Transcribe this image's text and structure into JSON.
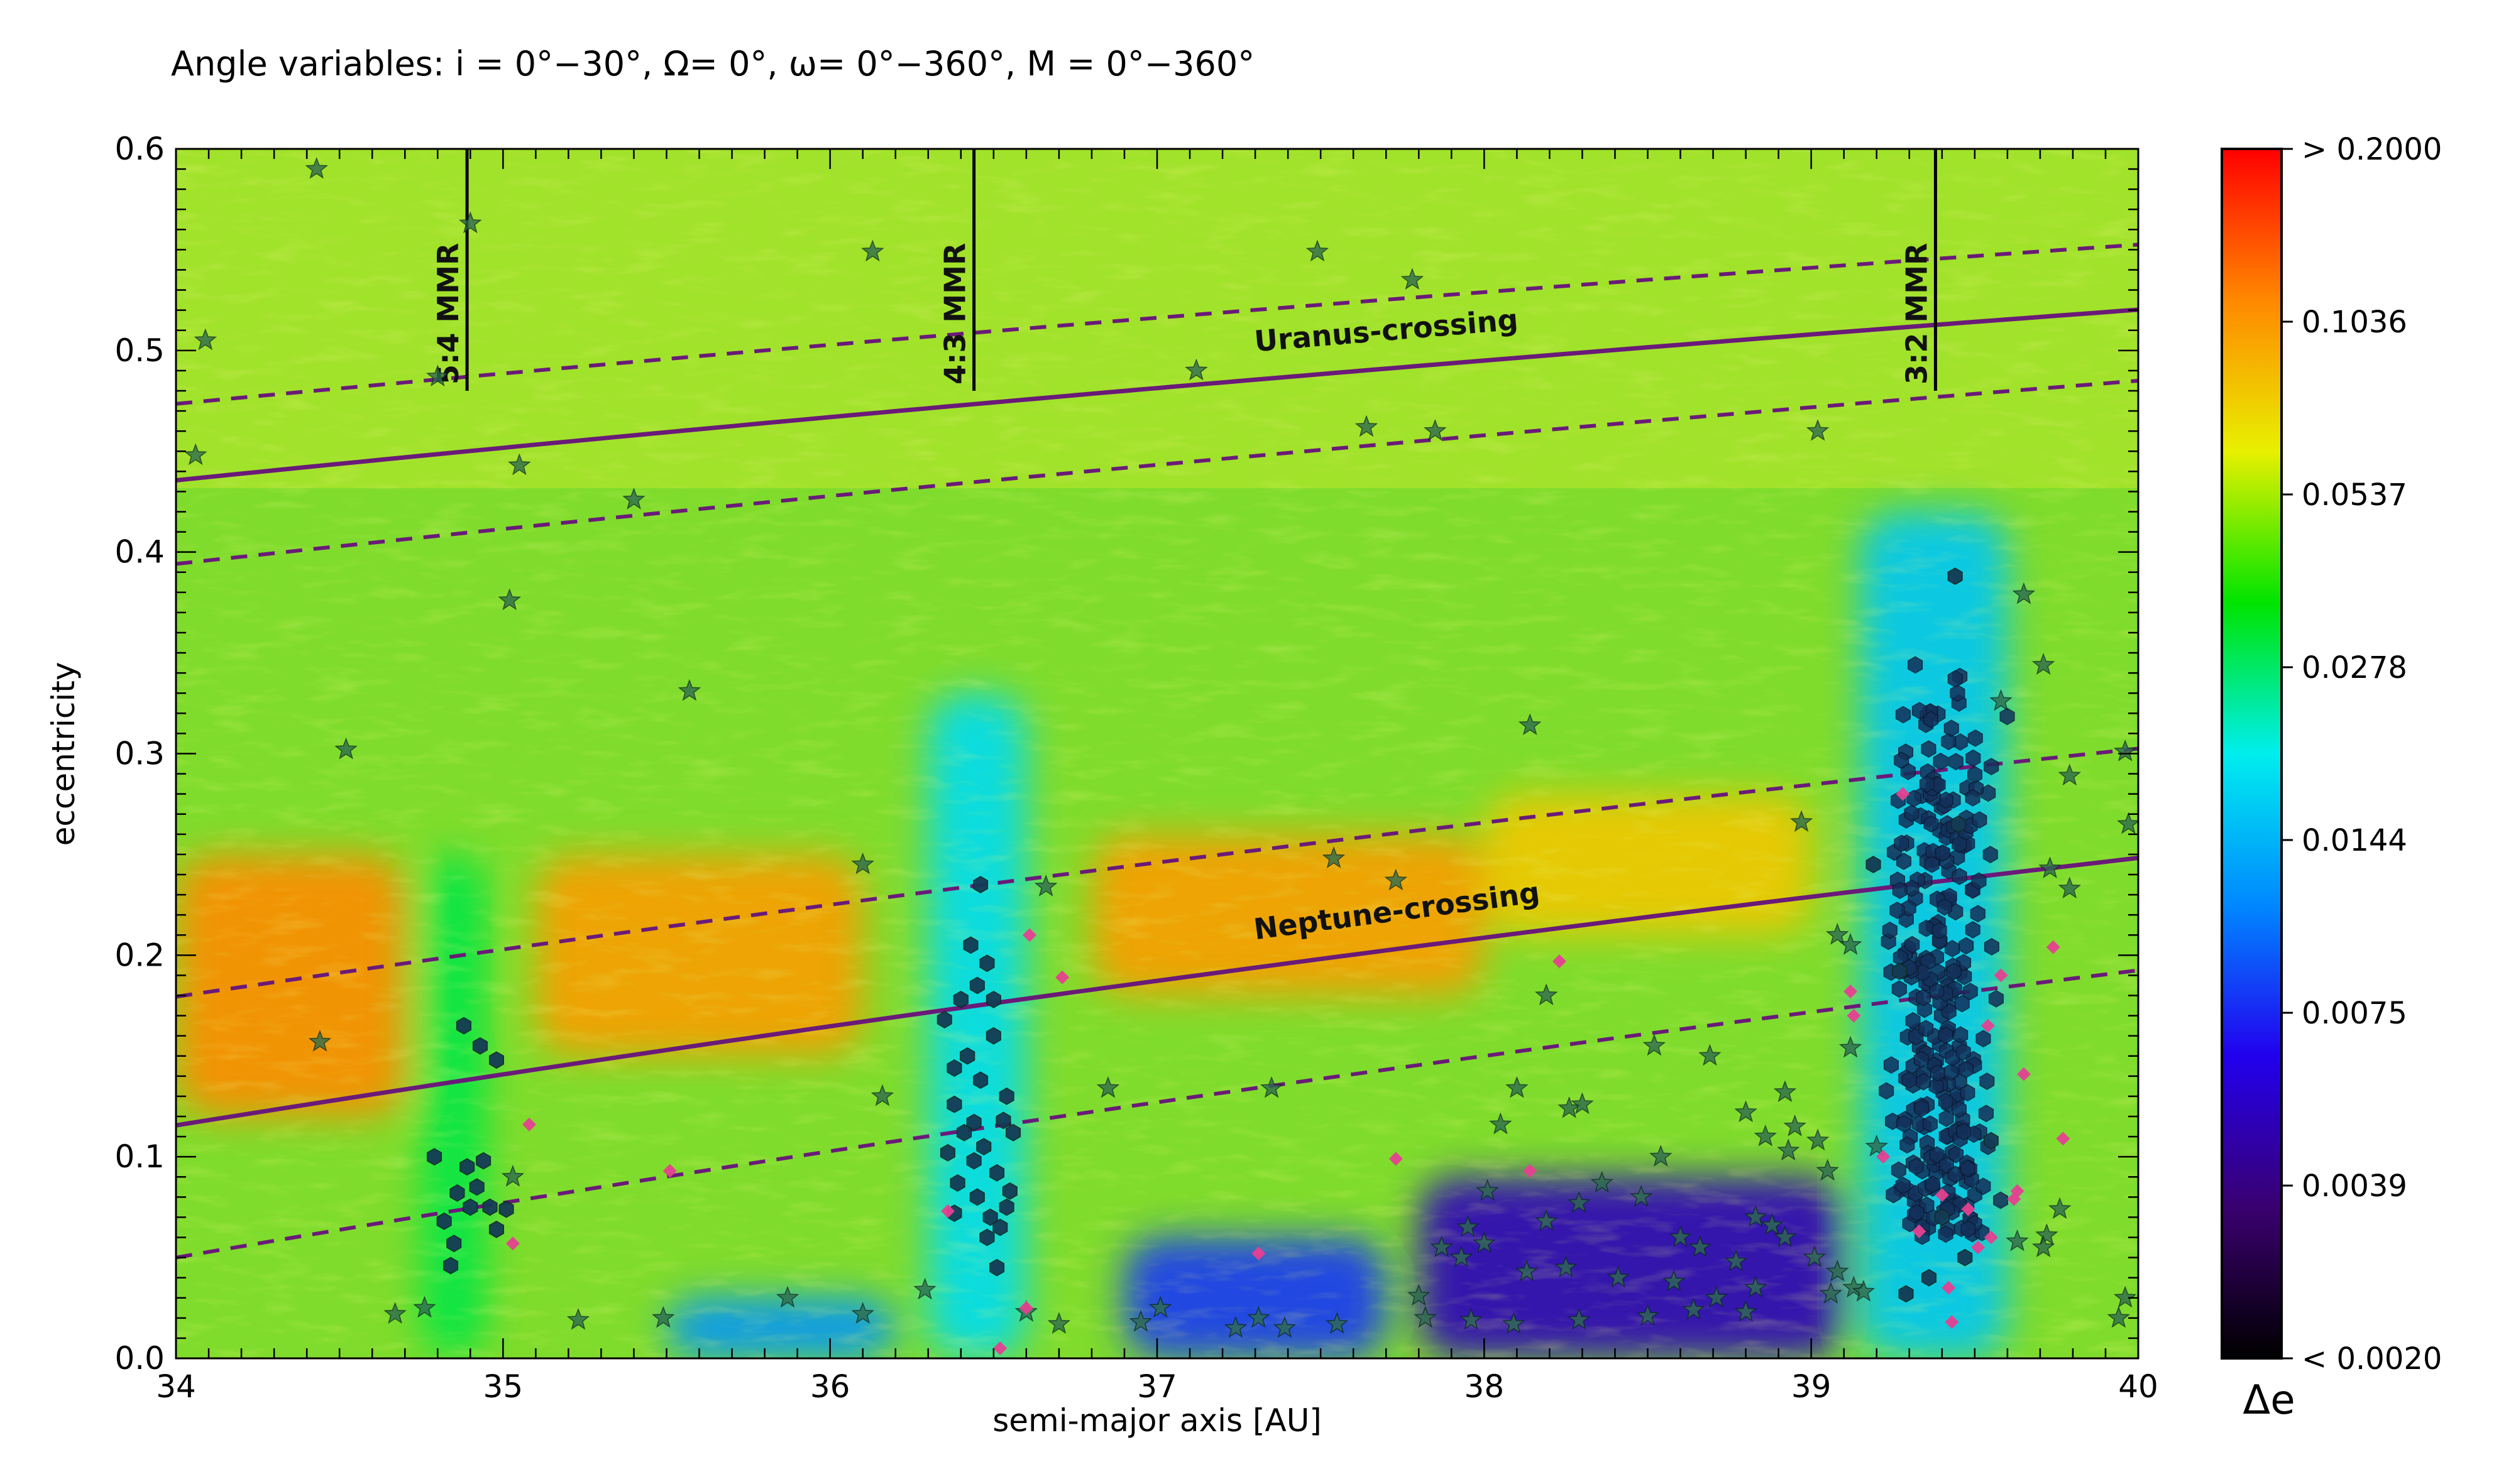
{
  "chart_data": {
    "type": "heatmap",
    "title": "Angle variables: i = 0°−30°, Ω= 0°, ω= 0°−360°, M = 0°−360°",
    "xlabel": "semi-major axis [AU]",
    "ylabel": "eccentricity",
    "xlim": [
      34,
      40
    ],
    "ylim": [
      0.0,
      0.6
    ],
    "x_ticks": [
      "34",
      "35",
      "36",
      "37",
      "38",
      "39",
      "40"
    ],
    "y_ticks": [
      "0.0",
      "0.1",
      "0.2",
      "0.3",
      "0.4",
      "0.5",
      "0.6"
    ],
    "colorbar": {
      "label": "Δe",
      "ticks": [
        "> 0.2000",
        "0.1036",
        "0.0537",
        "0.0278",
        "0.0144",
        "0.0075",
        "0.0039",
        "< 0.0020"
      ],
      "min": 0.002,
      "max": 0.2,
      "scale": "log",
      "colormap": [
        "#000000",
        "#3a0070",
        "#2200ee",
        "#0088ff",
        "#00eeee",
        "#00e400",
        "#e8f000",
        "#ff8800",
        "#ff0000"
      ]
    },
    "resonances": [
      {
        "label": "5:4 MMR",
        "a": 34.89
      },
      {
        "label": "4:3 MMR",
        "a": 36.44
      },
      {
        "label": "3:2 MMR",
        "a": 39.38
      }
    ],
    "crossing_lines": [
      {
        "label": "Uranus-crossing",
        "q": 19.19,
        "upper_q": 17.9,
        "lower_q": 20.6,
        "color": "#6a1a78"
      },
      {
        "label": "Neptune-crossing",
        "q": 30.07,
        "upper_q": 27.9,
        "lower_q": 32.3,
        "color": "#6a1a78"
      }
    ],
    "heatmap_field": [
      {
        "a": [
          34.0,
          34.7
        ],
        "e": [
          0.12,
          0.25
        ],
        "level": 0.11
      },
      {
        "a": [
          35.1,
          36.1
        ],
        "e": [
          0.15,
          0.25
        ],
        "level": 0.1
      },
      {
        "a": [
          36.8,
          38.0
        ],
        "e": [
          0.18,
          0.26
        ],
        "level": 0.1
      },
      {
        "a": [
          38.0,
          39.0
        ],
        "e": [
          0.21,
          0.28
        ],
        "level": 0.08
      },
      {
        "a": [
          37.8,
          39.1
        ],
        "e": [
          0.0,
          0.09
        ],
        "level": 0.005
      },
      {
        "a": [
          36.9,
          37.7
        ],
        "e": [
          0.0,
          0.06
        ],
        "level": 0.008
      },
      {
        "a": [
          35.5,
          36.2
        ],
        "e": [
          0.0,
          0.03
        ],
        "level": 0.012
      },
      {
        "a": [
          36.3,
          36.6
        ],
        "e": [
          0.0,
          0.33
        ],
        "level": 0.018
      },
      {
        "a": [
          39.15,
          39.6
        ],
        "e": [
          0.0,
          0.42
        ],
        "level": 0.016
      },
      {
        "a": [
          34.75,
          34.95
        ],
        "e": [
          0.0,
          0.25
        ],
        "level": 0.03
      }
    ],
    "series": [
      {
        "marker": "star",
        "color": "#2e6b4e",
        "points": [
          [
            34.43,
            0.59
          ],
          [
            34.09,
            0.505
          ],
          [
            34.06,
            0.448
          ],
          [
            34.9,
            0.563
          ],
          [
            34.8,
            0.487
          ],
          [
            35.05,
            0.443
          ],
          [
            35.4,
            0.426
          ],
          [
            35.02,
            0.376
          ],
          [
            35.57,
            0.331
          ],
          [
            34.52,
            0.302
          ],
          [
            34.44,
            0.157
          ],
          [
            36.13,
            0.549
          ],
          [
            37.12,
            0.49
          ],
          [
            37.49,
            0.549
          ],
          [
            37.78,
            0.535
          ],
          [
            37.64,
            0.462
          ],
          [
            37.85,
            0.46
          ],
          [
            39.02,
            0.46
          ],
          [
            38.14,
            0.314
          ],
          [
            36.1,
            0.245
          ],
          [
            36.66,
            0.234
          ],
          [
            37.54,
            0.248
          ],
          [
            37.73,
            0.237
          ],
          [
            38.97,
            0.266
          ],
          [
            39.97,
            0.265
          ],
          [
            39.96,
            0.301
          ],
          [
            39.79,
            0.289
          ],
          [
            39.79,
            0.233
          ],
          [
            39.73,
            0.243
          ],
          [
            39.65,
            0.379
          ],
          [
            39.71,
            0.344
          ],
          [
            39.58,
            0.326
          ],
          [
            39.08,
            0.21
          ],
          [
            39.12,
            0.205
          ],
          [
            38.19,
            0.18
          ],
          [
            38.52,
            0.155
          ],
          [
            38.69,
            0.15
          ],
          [
            39.12,
            0.154
          ],
          [
            38.92,
            0.132
          ],
          [
            36.85,
            0.134
          ],
          [
            37.35,
            0.134
          ],
          [
            38.1,
            0.134
          ],
          [
            38.26,
            0.124
          ],
          [
            38.3,
            0.126
          ],
          [
            38.05,
            0.116
          ],
          [
            38.8,
            0.122
          ],
          [
            38.86,
            0.11
          ],
          [
            38.95,
            0.115
          ],
          [
            39.02,
            0.108
          ],
          [
            39.2,
            0.105
          ],
          [
            38.93,
            0.103
          ],
          [
            39.05,
            0.093
          ],
          [
            38.54,
            0.1
          ],
          [
            38.36,
            0.087
          ],
          [
            38.01,
            0.083
          ],
          [
            38.29,
            0.077
          ],
          [
            38.19,
            0.068
          ],
          [
            37.95,
            0.065
          ],
          [
            38.0,
            0.057
          ],
          [
            38.48,
            0.08
          ],
          [
            38.6,
            0.06
          ],
          [
            38.66,
            0.055
          ],
          [
            38.77,
            0.048
          ],
          [
            38.92,
            0.06
          ],
          [
            39.01,
            0.05
          ],
          [
            39.08,
            0.043
          ],
          [
            38.83,
            0.035
          ],
          [
            38.71,
            0.03
          ],
          [
            38.58,
            0.038
          ],
          [
            38.41,
            0.04
          ],
          [
            38.25,
            0.045
          ],
          [
            38.13,
            0.043
          ],
          [
            37.93,
            0.05
          ],
          [
            37.87,
            0.055
          ],
          [
            37.8,
            0.031
          ],
          [
            37.82,
            0.02
          ],
          [
            37.96,
            0.019
          ],
          [
            38.09,
            0.017
          ],
          [
            38.29,
            0.019
          ],
          [
            38.5,
            0.021
          ],
          [
            38.64,
            0.024
          ],
          [
            38.8,
            0.023
          ],
          [
            39.06,
            0.032
          ],
          [
            39.13,
            0.035
          ],
          [
            39.16,
            0.033
          ],
          [
            37.01,
            0.025
          ],
          [
            36.95,
            0.018
          ],
          [
            36.7,
            0.017
          ],
          [
            36.6,
            0.023
          ],
          [
            36.29,
            0.034
          ],
          [
            36.1,
            0.022
          ],
          [
            35.87,
            0.03
          ],
          [
            35.49,
            0.02
          ],
          [
            35.23,
            0.019
          ],
          [
            34.76,
            0.025
          ],
          [
            34.67,
            0.022
          ],
          [
            37.24,
            0.015
          ],
          [
            37.31,
            0.02
          ],
          [
            37.55,
            0.017
          ],
          [
            39.63,
            0.058
          ],
          [
            39.72,
            0.061
          ],
          [
            39.76,
            0.074
          ],
          [
            39.71,
            0.055
          ],
          [
            39.94,
            0.02
          ],
          [
            39.96,
            0.03
          ],
          [
            36.16,
            0.13
          ],
          [
            35.03,
            0.09
          ],
          [
            37.39,
            0.015
          ],
          [
            38.88,
            0.066
          ],
          [
            38.83,
            0.07
          ]
        ]
      },
      {
        "marker": "hexagon",
        "color": "#153a55",
        "points": [
          [
            34.82,
            0.068
          ],
          [
            34.85,
            0.057
          ],
          [
            34.79,
            0.1
          ],
          [
            34.86,
            0.082
          ],
          [
            34.89,
            0.095
          ],
          [
            34.92,
            0.085
          ],
          [
            34.9,
            0.075
          ],
          [
            34.96,
            0.075
          ],
          [
            34.94,
            0.098
          ],
          [
            34.98,
            0.064
          ],
          [
            34.84,
            0.046
          ],
          [
            35.01,
            0.074
          ],
          [
            34.88,
            0.165
          ],
          [
            34.93,
            0.155
          ],
          [
            34.98,
            0.148
          ],
          [
            36.35,
            0.168
          ],
          [
            36.38,
            0.144
          ],
          [
            36.42,
            0.15
          ],
          [
            36.46,
            0.138
          ],
          [
            36.5,
            0.16
          ],
          [
            36.54,
            0.13
          ],
          [
            36.4,
            0.178
          ],
          [
            36.45,
            0.185
          ],
          [
            36.43,
            0.205
          ],
          [
            36.48,
            0.196
          ],
          [
            36.38,
            0.126
          ],
          [
            36.44,
            0.117
          ],
          [
            36.36,
            0.102
          ],
          [
            36.39,
            0.087
          ],
          [
            36.41,
            0.112
          ],
          [
            36.44,
            0.098
          ],
          [
            36.47,
            0.105
          ],
          [
            36.51,
            0.092
          ],
          [
            36.53,
            0.118
          ],
          [
            36.45,
            0.08
          ],
          [
            36.49,
            0.07
          ],
          [
            36.52,
            0.065
          ],
          [
            36.48,
            0.06
          ],
          [
            36.51,
            0.045
          ],
          [
            36.38,
            0.072
          ],
          [
            36.54,
            0.075
          ],
          [
            36.55,
            0.083
          ],
          [
            36.46,
            0.235
          ],
          [
            36.5,
            0.178
          ],
          [
            36.56,
            0.112
          ],
          [
            39.44,
            0.388
          ],
          [
            39.19,
            0.245
          ],
          [
            39.27,
            0.192
          ],
          [
            39.55,
            0.108
          ],
          [
            39.4,
            0.07
          ],
          [
            39.47,
            0.05
          ],
          [
            39.36,
            0.04
          ],
          [
            39.29,
            0.032
          ],
          [
            39.45,
            0.265
          ]
        ]
      },
      {
        "marker": "diamond",
        "color": "#e64091",
        "points": [
          [
            35.08,
            0.116
          ],
          [
            35.03,
            0.057
          ],
          [
            35.51,
            0.093
          ],
          [
            36.36,
            0.073
          ],
          [
            36.52,
            0.005
          ],
          [
            36.6,
            0.025
          ],
          [
            36.61,
            0.21
          ],
          [
            36.71,
            0.189
          ],
          [
            37.31,
            0.052
          ],
          [
            37.73,
            0.099
          ],
          [
            38.23,
            0.197
          ],
          [
            38.14,
            0.093
          ],
          [
            39.12,
            0.182
          ],
          [
            39.13,
            0.17
          ],
          [
            39.22,
            0.1
          ],
          [
            39.28,
            0.28
          ],
          [
            39.33,
            0.063
          ],
          [
            39.4,
            0.081
          ],
          [
            39.48,
            0.074
          ],
          [
            39.54,
            0.165
          ],
          [
            39.58,
            0.19
          ],
          [
            39.62,
            0.079
          ],
          [
            39.65,
            0.141
          ],
          [
            39.74,
            0.204
          ],
          [
            39.77,
            0.109
          ],
          [
            39.43,
            0.018
          ],
          [
            39.51,
            0.055
          ],
          [
            39.63,
            0.083
          ],
          [
            39.42,
            0.035
          ],
          [
            39.55,
            0.06
          ]
        ]
      }
    ],
    "cluster_3_2": {
      "a": [
        39.17,
        39.62
      ],
      "e": [
        0.06,
        0.345
      ],
      "count": 300
    }
  }
}
